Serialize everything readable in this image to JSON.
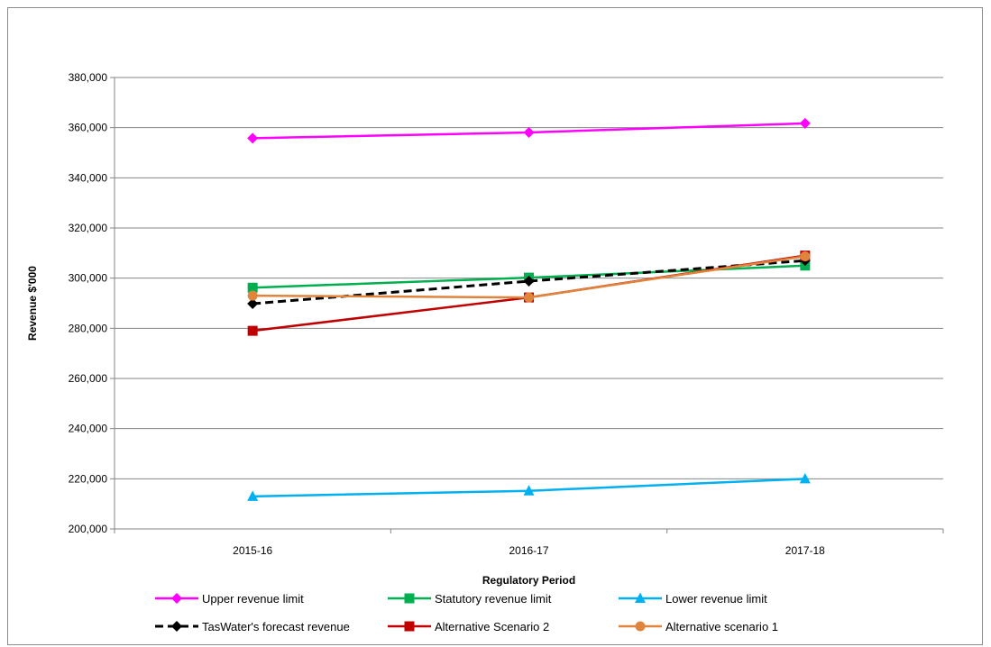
{
  "chart_data": {
    "type": "line",
    "title": "",
    "xlabel": "Regulatory Period",
    "ylabel": "Revenue  $'000",
    "categories": [
      "2015-16",
      "2016-17",
      "2017-18"
    ],
    "ylim": [
      200000,
      380000
    ],
    "yticks": [
      200000,
      220000,
      240000,
      260000,
      280000,
      300000,
      320000,
      340000,
      360000,
      380000
    ],
    "grid": true,
    "legend_position": "bottom",
    "series": [
      {
        "name": "Upper revenue limit",
        "values": [
          355800,
          358100,
          361700
        ],
        "color": "#ff00ff",
        "marker": "diamond",
        "dash": false
      },
      {
        "name": "Statutory revenue limit",
        "values": [
          296200,
          300200,
          305000
        ],
        "color": "#00b050",
        "marker": "square",
        "dash": false
      },
      {
        "name": "Lower revenue limit",
        "values": [
          213000,
          215200,
          220000
        ],
        "color": "#00b0f0",
        "marker": "triangle",
        "dash": false
      },
      {
        "name": "TasWater's forecast revenue",
        "values": [
          289800,
          298800,
          307000
        ],
        "color": "#000000",
        "marker": "diamond",
        "dash": true
      },
      {
        "name": "Alternative Scenario 2",
        "values": [
          279000,
          292300,
          309000
        ],
        "color": "#c00000",
        "marker": "square",
        "dash": false
      },
      {
        "name": "Alternative scenario 1",
        "values": [
          293000,
          292300,
          308700
        ],
        "color": "#e0843c",
        "marker": "circle",
        "dash": false
      }
    ]
  }
}
